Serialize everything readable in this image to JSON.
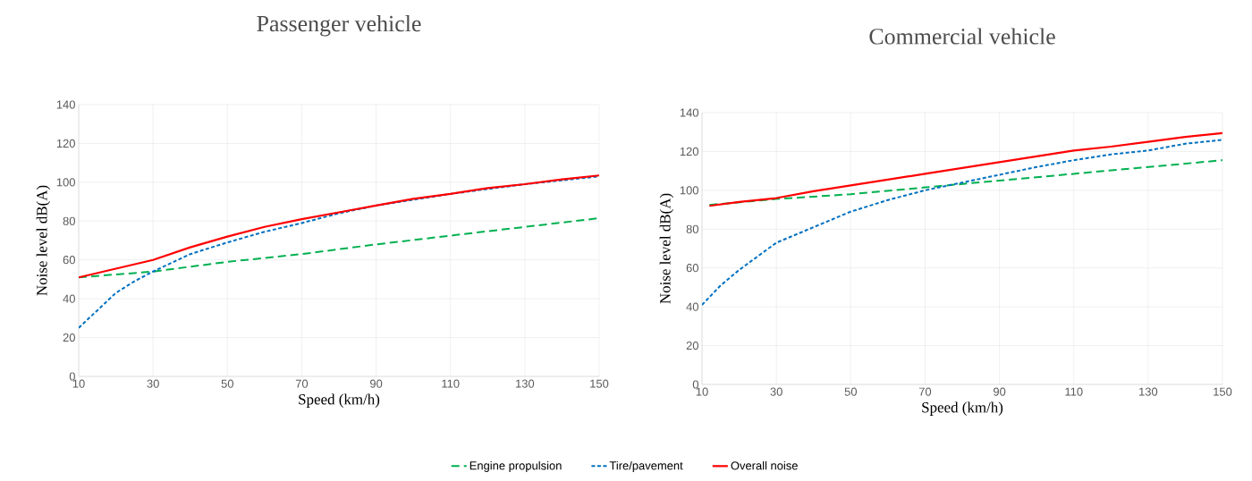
{
  "chart_data": [
    {
      "type": "line",
      "title": "Passenger vehicle",
      "xlabel": "Speed (km/h)",
      "ylabel": "Noise level dB(A)",
      "xlim": [
        10,
        150
      ],
      "xticks": [
        10,
        30,
        50,
        70,
        90,
        110,
        130,
        150
      ],
      "ylim": [
        0,
        140
      ],
      "yticks": [
        0,
        20,
        40,
        60,
        80,
        100,
        120,
        140
      ],
      "grid": true,
      "legend": "bottom",
      "series": [
        {
          "name": "Engine propulsion",
          "color": "#00b050",
          "line_style": "dashed",
          "x": [
            10,
            30,
            50,
            70,
            90,
            110,
            130,
            150
          ],
          "values": [
            51,
            54,
            59,
            63,
            68,
            72.5,
            77,
            81.5
          ]
        },
        {
          "name": "Tire/pavement",
          "color": "#0070c0",
          "line_style": "dotted",
          "x": [
            10,
            15,
            20,
            25,
            30,
            40,
            50,
            60,
            70,
            80,
            90,
            100,
            110,
            120,
            130,
            140,
            150
          ],
          "values": [
            25,
            34,
            43,
            49,
            54,
            63,
            69,
            74.5,
            79,
            84,
            88,
            91,
            94,
            96.5,
            99,
            101,
            103
          ]
        },
        {
          "name": "Overall noise",
          "color": "#ff0000",
          "line_style": "solid",
          "x": [
            10,
            20,
            30,
            40,
            50,
            60,
            70,
            80,
            90,
            100,
            110,
            120,
            130,
            140,
            150
          ],
          "values": [
            51,
            55.5,
            60,
            66.5,
            72,
            77,
            81,
            84.5,
            88,
            91.5,
            94,
            97,
            99,
            101.5,
            103.5
          ]
        }
      ]
    },
    {
      "type": "line",
      "title": "Commercial vehicle",
      "xlabel": "Speed (km/h)",
      "ylabel": "Noise level dB(A)",
      "xlim": [
        10,
        150
      ],
      "xticks": [
        10,
        30,
        50,
        70,
        90,
        110,
        130,
        150
      ],
      "ylim": [
        0,
        140
      ],
      "yticks": [
        0,
        20,
        40,
        60,
        80,
        100,
        120,
        140
      ],
      "grid": true,
      "series": [
        {
          "color": "#00b050",
          "line_style": "dashed",
          "x": [
            12,
            30,
            50,
            70,
            90,
            110,
            130,
            150
          ],
          "values": [
            92.5,
            95.5,
            98,
            101.5,
            105,
            108.5,
            112,
            115.5
          ]
        },
        {
          "color": "#0070c0",
          "line_style": "dotted",
          "x": [
            10,
            15,
            20,
            25,
            30,
            40,
            50,
            60,
            70,
            80,
            90,
            100,
            110,
            120,
            130,
            140,
            150
          ],
          "values": [
            41,
            51,
            59,
            66,
            73,
            81,
            89,
            95,
            100,
            104,
            108,
            112,
            115.5,
            118.5,
            120.5,
            124,
            126
          ]
        },
        {
          "color": "#ff0000",
          "line_style": "solid",
          "x": [
            12,
            20,
            30,
            40,
            50,
            60,
            70,
            80,
            90,
            100,
            110,
            120,
            130,
            140,
            150
          ],
          "values": [
            92,
            94,
            96,
            99.5,
            102.5,
            105.5,
            108.5,
            111.5,
            114.5,
            117.5,
            120.5,
            122.5,
            125,
            127.5,
            129.5
          ]
        }
      ]
    }
  ]
}
